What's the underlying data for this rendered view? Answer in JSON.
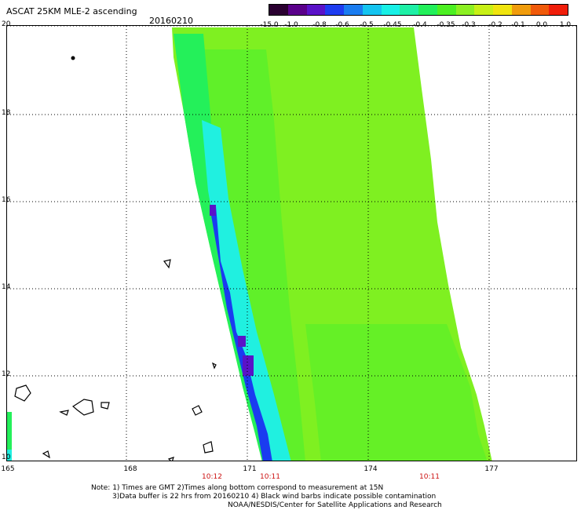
{
  "header": {
    "title": "ASCAT 25KM MLE-2 ascending",
    "date": "20160210"
  },
  "colorbar": {
    "colors": [
      "#2a0030",
      "#5a008a",
      "#5a12c8",
      "#1e3cf0",
      "#1a7cf0",
      "#14c4f0",
      "#18f0e6",
      "#1ef0a6",
      "#22f05a",
      "#4cf022",
      "#8cf022",
      "#c8f016",
      "#f0e40e",
      "#f09c0c",
      "#f05a0a",
      "#f01e0a"
    ],
    "labels": [
      "-15.0",
      "-1.0",
      "-0.8",
      "-0.6",
      "-0.5",
      "-0.45",
      "-0.4",
      "-0.35",
      "-0.3",
      "-0.2",
      "-0.1",
      "0.0",
      "1.0"
    ]
  },
  "map": {
    "lat_labels": [
      "20",
      "18",
      "16",
      "14",
      "12",
      "10"
    ],
    "lon_labels": [
      "165",
      "168",
      "171",
      "174",
      "177"
    ],
    "time_labels": [
      "10:12",
      "10:11",
      "10:11"
    ],
    "swath_colors": {
      "main": "#7ff021",
      "mid": "#5af02a",
      "edge": "#24f05a",
      "cyan": "#20f0e0",
      "blue": "#1a3cf0",
      "purple": "#5a12c8"
    }
  },
  "notes": {
    "line1": "Note: 1) Times are GMT 2)Times along bottom correspond to measurement at 15N",
    "line2": "3)Data buffer is 22 hrs from 20160210 4) Black wind barbs indicate possible contamination",
    "line3": "NOAA/NESDIS/Center for Satellite Applications and Research"
  }
}
